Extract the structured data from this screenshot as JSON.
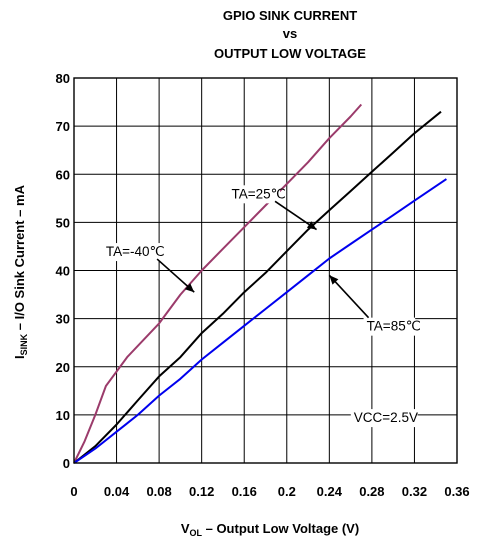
{
  "chart_data": {
    "type": "line",
    "title_lines": [
      "GPIO SINK CURRENT",
      "vs",
      "OUTPUT LOW VOLTAGE"
    ],
    "xlabel": {
      "main": "V",
      "sub": "OL",
      "rest": " – Output Low Voltage (V)"
    },
    "ylabel": {
      "main": "I",
      "sub": "SINK",
      "rest": " – I/O Sink Current – mA"
    },
    "xlim": [
      0,
      0.36
    ],
    "ylim": [
      0,
      80
    ],
    "x_ticks": [
      0,
      0.04,
      0.08,
      0.12,
      0.16,
      0.2,
      0.24,
      0.28,
      0.32,
      0.36
    ],
    "x_tick_labels": [
      "0",
      "0.04",
      "0.08",
      "0.12",
      "0.16",
      "0.2",
      "0.24",
      "0.28",
      "0.32",
      "0.36"
    ],
    "y_ticks": [
      0,
      10,
      20,
      30,
      40,
      50,
      60,
      70,
      80
    ],
    "y_tick_labels": [
      "0",
      "10",
      "20",
      "30",
      "40",
      "50",
      "60",
      "70",
      "80"
    ],
    "grid": true,
    "series": [
      {
        "color": "#9b3b6b",
        "points": [
          [
            0,
            0
          ],
          [
            0.01,
            4.5
          ],
          [
            0.02,
            10
          ],
          [
            0.03,
            16
          ],
          [
            0.05,
            22
          ],
          [
            0.08,
            29
          ],
          [
            0.1,
            35
          ],
          [
            0.12,
            40
          ],
          [
            0.14,
            44.5
          ],
          [
            0.16,
            49
          ],
          [
            0.18,
            53.5
          ],
          [
            0.2,
            58
          ],
          [
            0.22,
            62.5
          ],
          [
            0.24,
            67.5
          ],
          [
            0.26,
            72
          ],
          [
            0.27,
            74.5
          ]
        ]
      },
      {
        "color": "#000000",
        "points": [
          [
            0,
            0
          ],
          [
            0.02,
            3.5
          ],
          [
            0.04,
            8
          ],
          [
            0.06,
            13
          ],
          [
            0.08,
            18
          ],
          [
            0.1,
            22
          ],
          [
            0.12,
            27
          ],
          [
            0.14,
            31
          ],
          [
            0.16,
            35.5
          ],
          [
            0.18,
            39.5
          ],
          [
            0.2,
            44
          ],
          [
            0.22,
            48.5
          ],
          [
            0.24,
            52.5
          ],
          [
            0.26,
            56.5
          ],
          [
            0.28,
            60.5
          ],
          [
            0.3,
            64.5
          ],
          [
            0.32,
            68.5
          ],
          [
            0.345,
            73
          ]
        ]
      },
      {
        "color": "#0000ee",
        "points": [
          [
            0,
            0
          ],
          [
            0.02,
            3
          ],
          [
            0.04,
            6.5
          ],
          [
            0.06,
            10
          ],
          [
            0.08,
            14
          ],
          [
            0.1,
            17.5
          ],
          [
            0.12,
            21.5
          ],
          [
            0.14,
            25
          ],
          [
            0.16,
            28.5
          ],
          [
            0.18,
            32
          ],
          [
            0.2,
            35.5
          ],
          [
            0.22,
            39
          ],
          [
            0.24,
            42.5
          ],
          [
            0.26,
            45.5
          ],
          [
            0.28,
            48.5
          ],
          [
            0.3,
            51.5
          ],
          [
            0.32,
            54.5
          ],
          [
            0.35,
            59
          ]
        ]
      }
    ],
    "annotations": [
      {
        "text": "TA=-40℃",
        "x": 0.03,
        "y": 43,
        "arrow_to": [
          0.113,
          35.5
        ]
      },
      {
        "text": "TA=25℃",
        "x": 0.148,
        "y": 55,
        "arrow_to": [
          0.228,
          48.5
        ]
      },
      {
        "text": "TA=85℃",
        "x": 0.275,
        "y": 27.5,
        "arrow_to": [
          0.24,
          39
        ]
      },
      {
        "text": "VCC=2.5V",
        "x": 0.263,
        "y": 8.5
      }
    ]
  }
}
